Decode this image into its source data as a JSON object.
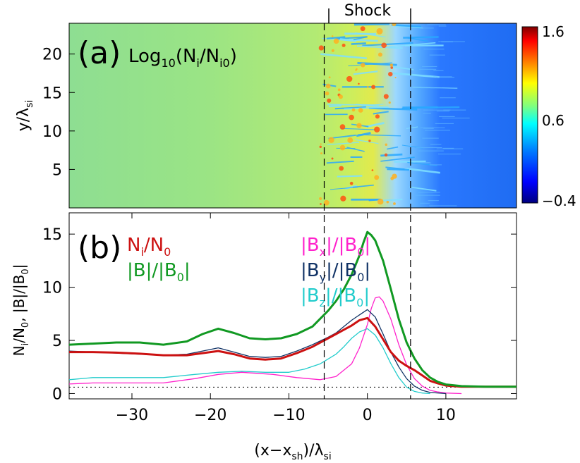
{
  "figure": {
    "shock_label": "Shock",
    "xlabel": "(x−x",
    "xlabel_sub": "sh",
    "xlabel_rest": ")/λ",
    "xlabel_sub2": "si"
  },
  "chart_data": [
    {
      "type": "heatmap",
      "panel_label": "(a)",
      "title": "Log",
      "title_sub": "10",
      "title_mid": "(N",
      "title_sub2": "i",
      "title_mid2": "/N",
      "title_sub3": "i0",
      "title_end": ")",
      "ylabel": "y/λ",
      "ylabel_sub": "si",
      "xlim": [
        -38,
        19
      ],
      "ylim": [
        0,
        24
      ],
      "yticks": [
        5,
        10,
        15,
        20
      ],
      "colorbar": {
        "range": [
          -0.4,
          1.6
        ],
        "tick_labels": [
          "1.6",
          "0.6",
          "−0.4"
        ],
        "colormap": [
          "#00007f",
          "#0000ff",
          "#007fff",
          "#00ffff",
          "#7fff7f",
          "#ffff00",
          "#ff7f00",
          "#ff0000",
          "#7f0000"
        ]
      },
      "regions": [
        {
          "x_start": -38,
          "x_end": -5.5,
          "level": 0.62,
          "color": "#8fe08a"
        },
        {
          "x_start": -5.5,
          "x_end": 5.5,
          "level": 0.9,
          "color": "#e8e850"
        },
        {
          "x_start": 5.5,
          "x_end": 19,
          "level": -0.1,
          "color": "#1f6fff"
        }
      ]
    },
    {
      "type": "line",
      "panel_label": "(b)",
      "ylabel": "N",
      "xlim": [
        -38,
        19
      ],
      "ylim": [
        -0.5,
        17
      ],
      "xticks": [
        -30,
        -20,
        -10,
        0,
        10
      ],
      "yticks": [
        0,
        5,
        10,
        15
      ],
      "shock_lines_x": [
        -5.5,
        5.5
      ],
      "reference_line_y": 0.6,
      "legend": [
        {
          "label": "N",
          "sub": "i",
          "mid": "/N",
          "sub2": "0",
          "end": "",
          "color": "#cc1111"
        },
        {
          "label": "|B|/|B",
          "sub": "0",
          "mid": "|",
          "sub2": "",
          "end": "",
          "color": "#119922"
        },
        {
          "label": "|B",
          "sub": "x",
          "mid": "|/|B",
          "sub2": "0",
          "end": "|",
          "color": "#ff22cc"
        },
        {
          "label": "|B",
          "sub": "y",
          "mid": "|/|B",
          "sub2": "0",
          "end": "|",
          "color": "#113366"
        },
        {
          "label": "|B",
          "sub": "z",
          "mid": "|/|B",
          "sub2": "0",
          "end": "|",
          "color": "#22cccc"
        }
      ],
      "series": [
        {
          "key": "B",
          "color": "#119922",
          "width": 3,
          "x": [
            -38,
            -35,
            -32,
            -29,
            -26,
            -23,
            -21,
            -19,
            -17,
            -15,
            -13,
            -11,
            -9,
            -7,
            -5,
            -4,
            -3,
            -2,
            -1,
            -0.5,
            0,
            0.5,
            1,
            2,
            3,
            4,
            5,
            6,
            7,
            8,
            9,
            10,
            12,
            15,
            19
          ],
          "y": [
            4.6,
            4.7,
            4.8,
            4.8,
            4.6,
            4.9,
            5.6,
            6.1,
            5.7,
            5.2,
            5.1,
            5.2,
            5.6,
            6.3,
            7.8,
            8.7,
            9.8,
            11.2,
            13.0,
            14.2,
            15.2,
            14.9,
            14.4,
            12.5,
            9.8,
            7.0,
            4.8,
            3.3,
            2.2,
            1.5,
            1.1,
            0.85,
            0.7,
            0.65,
            0.65
          ]
        },
        {
          "key": "Ni",
          "color": "#cc1111",
          "width": 3,
          "x": [
            -38,
            -35,
            -32,
            -29,
            -26,
            -23,
            -21,
            -19,
            -17,
            -15,
            -13,
            -11,
            -9,
            -7,
            -5,
            -4,
            -3,
            -2,
            -1,
            0,
            1,
            2,
            3,
            4,
            5,
            6,
            7,
            8,
            9,
            10,
            12,
            15,
            19
          ],
          "y": [
            3.9,
            3.9,
            3.85,
            3.75,
            3.6,
            3.6,
            3.8,
            4.0,
            3.7,
            3.3,
            3.2,
            3.3,
            3.8,
            4.4,
            5.2,
            5.6,
            6.0,
            6.4,
            6.9,
            7.1,
            6.3,
            5.1,
            3.9,
            3.1,
            2.6,
            2.2,
            1.7,
            1.2,
            0.95,
            0.75,
            0.65,
            0.65,
            0.65
          ]
        },
        {
          "key": "By",
          "color": "#113366",
          "width": 1.3,
          "x": [
            -38,
            -35,
            -32,
            -29,
            -26,
            -23,
            -21,
            -19,
            -17,
            -15,
            -13,
            -11,
            -9,
            -7,
            -5,
            -4,
            -3,
            -2,
            -1,
            0,
            1,
            2,
            3,
            4,
            5,
            6,
            7,
            8,
            10
          ],
          "y": [
            4.0,
            3.9,
            3.8,
            3.7,
            3.6,
            3.7,
            4.0,
            4.3,
            3.9,
            3.5,
            3.4,
            3.5,
            4.0,
            4.6,
            5.3,
            5.7,
            6.3,
            6.9,
            7.4,
            7.9,
            7.2,
            5.6,
            3.9,
            2.5,
            1.4,
            0.7,
            0.3,
            0.1,
            0
          ]
        },
        {
          "key": "Bx",
          "color": "#ff22cc",
          "width": 1.3,
          "x": [
            -38,
            -35,
            -30,
            -26,
            -22,
            -19,
            -16,
            -12,
            -9,
            -6,
            -4,
            -2,
            -1,
            0,
            0.5,
            1,
            1.5,
            2,
            3,
            4,
            5,
            6,
            7,
            8,
            9,
            10,
            12
          ],
          "y": [
            0.9,
            1.0,
            1.0,
            1.0,
            1.4,
            1.8,
            2.0,
            1.8,
            1.5,
            1.3,
            1.6,
            2.8,
            4.3,
            6.5,
            8.0,
            9.0,
            9.1,
            8.7,
            7.0,
            4.6,
            2.7,
            1.4,
            0.7,
            0.3,
            0.15,
            0.05,
            0
          ]
        },
        {
          "key": "Bz",
          "color": "#22cccc",
          "width": 1.3,
          "x": [
            -38,
            -35,
            -30,
            -26,
            -22,
            -19,
            -16,
            -13,
            -10,
            -8,
            -6,
            -4,
            -3,
            -2,
            -1,
            0,
            1,
            2,
            3,
            4,
            5,
            6,
            7,
            8
          ],
          "y": [
            1.3,
            1.5,
            1.5,
            1.5,
            1.8,
            2.0,
            2.1,
            2.0,
            2.0,
            2.3,
            2.8,
            3.7,
            4.4,
            5.2,
            5.8,
            6.1,
            5.5,
            4.3,
            2.8,
            1.5,
            0.6,
            0.2,
            0.05,
            0
          ]
        }
      ]
    }
  ]
}
